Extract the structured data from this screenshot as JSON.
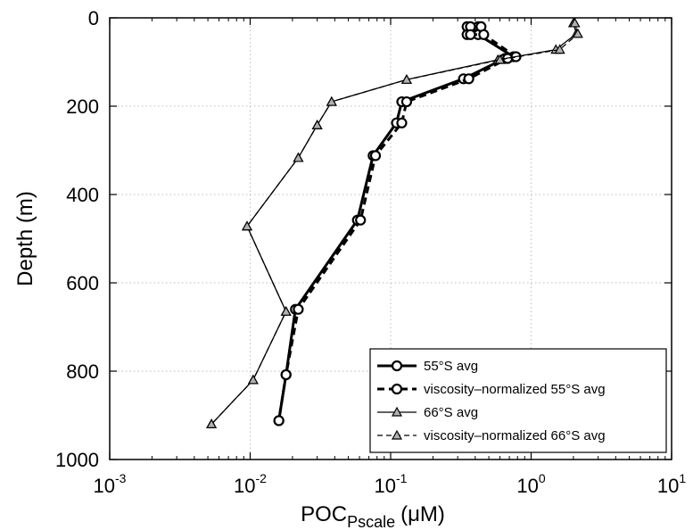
{
  "chart_data": {
    "type": "line",
    "title": "",
    "xlabel": {
      "main": "POC",
      "sub": "Pscale",
      "unit": "(μM)"
    },
    "ylabel": "Depth (m)",
    "xscale": "log",
    "xlim": [
      0.001,
      10
    ],
    "ylim": [
      0,
      1000
    ],
    "y_reversed": true,
    "grid": true,
    "legend_position": "bottom-right",
    "x_ticks": [
      {
        "value": 0.001,
        "base": "10",
        "exp": "-3"
      },
      {
        "value": 0.01,
        "base": "10",
        "exp": "-2"
      },
      {
        "value": 0.1,
        "base": "10",
        "exp": "-1"
      },
      {
        "value": 1,
        "base": "10",
        "exp": "0"
      },
      {
        "value": 10,
        "base": "10",
        "exp": "1"
      }
    ],
    "y_ticks": [
      0,
      200,
      400,
      600,
      800,
      1000
    ],
    "series": [
      {
        "name": "55°S avg",
        "style": "solid",
        "marker": "circle",
        "width": "thick",
        "points": [
          [
            0.35,
            20
          ],
          [
            0.42,
            20
          ],
          [
            0.35,
            38
          ],
          [
            0.42,
            38
          ],
          [
            0.75,
            88
          ],
          [
            0.65,
            92
          ],
          [
            0.33,
            138
          ],
          [
            0.12,
            190
          ],
          [
            0.11,
            238
          ],
          [
            0.075,
            312
          ],
          [
            0.058,
            458
          ],
          [
            0.021,
            660
          ],
          [
            0.018,
            808
          ],
          [
            0.016,
            912
          ]
        ]
      },
      {
        "name": "viscosity–normalized 55°S avg",
        "style": "dashed",
        "marker": "circle",
        "width": "thick",
        "points": [
          [
            0.37,
            20
          ],
          [
            0.44,
            20
          ],
          [
            0.37,
            38
          ],
          [
            0.46,
            38
          ],
          [
            0.78,
            88
          ],
          [
            0.68,
            92
          ],
          [
            0.36,
            138
          ],
          [
            0.13,
            190
          ],
          [
            0.12,
            238
          ],
          [
            0.078,
            312
          ],
          [
            0.061,
            458
          ],
          [
            0.022,
            660
          ],
          [
            0.018,
            808
          ],
          [
            0.016,
            912
          ]
        ]
      },
      {
        "name": "66°S avg",
        "style": "solid",
        "marker": "triangle",
        "width": "thin",
        "points": [
          [
            2.0,
            12
          ],
          [
            2.1,
            36
          ],
          [
            1.5,
            72
          ],
          [
            0.58,
            95
          ],
          [
            0.13,
            140
          ],
          [
            0.038,
            190
          ],
          [
            0.03,
            243
          ],
          [
            0.022,
            317
          ],
          [
            0.0095,
            472
          ],
          [
            0.018,
            665
          ],
          [
            0.0105,
            820
          ],
          [
            0.0053,
            920
          ]
        ]
      },
      {
        "name": "viscosity–normalized 66°S avg",
        "style": "dashed",
        "marker": "triangle",
        "width": "thin",
        "points": [
          [
            2.05,
            12
          ],
          [
            2.15,
            36
          ],
          [
            1.6,
            72
          ],
          [
            0.6,
            95
          ],
          [
            0.13,
            140
          ],
          [
            0.038,
            190
          ],
          [
            0.03,
            243
          ],
          [
            0.022,
            317
          ],
          [
            0.0095,
            472
          ],
          [
            0.018,
            665
          ],
          [
            0.0105,
            820
          ],
          [
            0.0053,
            920
          ]
        ]
      }
    ]
  }
}
